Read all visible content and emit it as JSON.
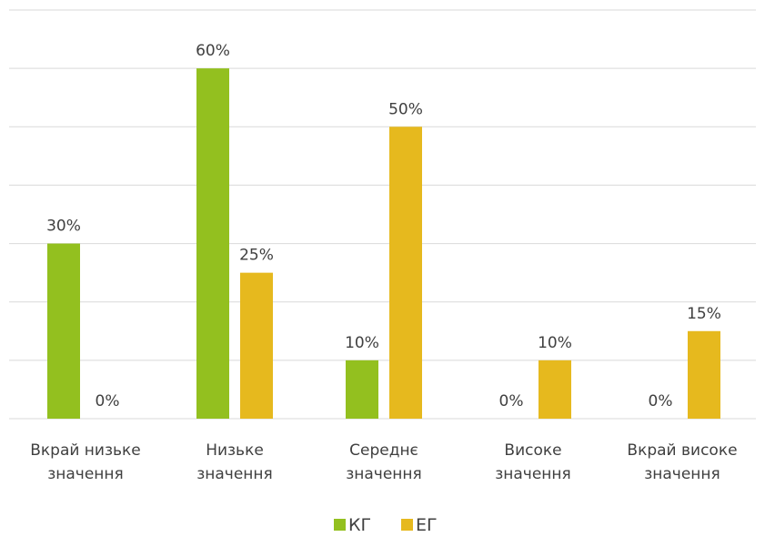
{
  "chart_data": {
    "type": "bar",
    "categories": [
      "Вкрай низьке\nзначення",
      "Низьке\nзначення",
      "Середнє\nзначення",
      "Високе\nзначення",
      "Вкрай високе\nзначення"
    ],
    "series": [
      {
        "name": "КГ",
        "color": "#93c01f",
        "values": [
          30,
          60,
          10,
          0,
          0
        ],
        "value_labels": [
          "30%",
          "60%",
          "10%",
          "0%",
          "0%"
        ]
      },
      {
        "name": "ЕГ",
        "color": "#e6b91e",
        "values": [
          0,
          25,
          50,
          10,
          15
        ],
        "value_labels": [
          "0%",
          "25%",
          "50%",
          "10%",
          "15%"
        ]
      }
    ],
    "ylim": [
      0,
      70
    ],
    "yticks": [
      0,
      10,
      20,
      30,
      40,
      50,
      60,
      70
    ],
    "grid": true,
    "legend": "bottom"
  }
}
